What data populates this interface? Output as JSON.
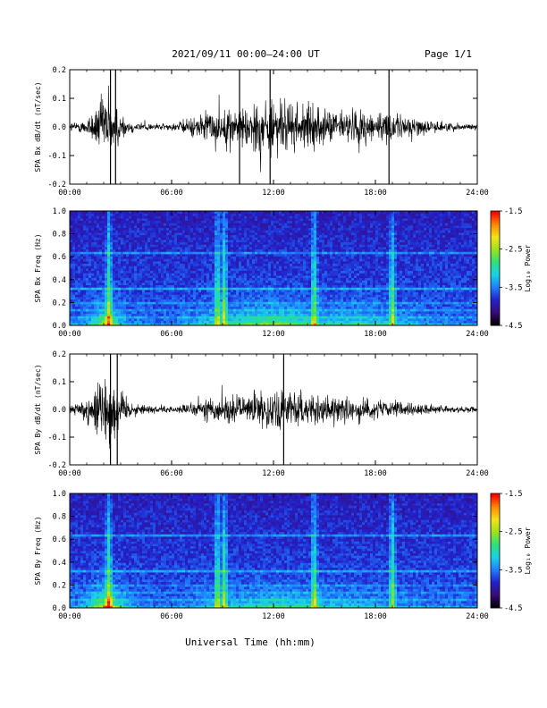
{
  "header": {
    "title": "2021/09/11  00:00–24:00 UT",
    "page": "Page 1/1"
  },
  "footer": {
    "xlabel": "Universal Time (hh:mm)"
  },
  "colors": {
    "trace": "#000000",
    "colormap": [
      "#000000",
      "#3a0b7a",
      "#2222cc",
      "#1f7fff",
      "#19d3e6",
      "#2ee07a",
      "#9be21c",
      "#f2e41a",
      "#ff8a00",
      "#ff0000"
    ]
  },
  "chart_data": [
    {
      "id": "bx-waveform",
      "type": "line",
      "ylabel": "SPA Bx dB/dt (nT/sec)",
      "xlim": [
        "00:00",
        "24:00"
      ],
      "ylim": [
        -0.2,
        0.2
      ],
      "xticks": [
        "00:00",
        "06:00",
        "12:00",
        "18:00",
        "24:00"
      ],
      "yticks": [
        "-0.2",
        "-0.1",
        "0.0",
        "0.1",
        "0.2"
      ],
      "envelope": {
        "hours": [
          0,
          0.5,
          1.0,
          1.5,
          2.0,
          2.3,
          2.6,
          3.0,
          3.5,
          4.0,
          5.0,
          6.0,
          7.0,
          8.0,
          9.0,
          10.0,
          11.0,
          12.0,
          13.0,
          14.0,
          14.5,
          15.0,
          16.0,
          17.0,
          18.0,
          19.0,
          20.0,
          21.0,
          22.0,
          23.0,
          24.0
        ],
        "amplitude": [
          0.03,
          0.03,
          0.05,
          0.12,
          0.2,
          0.22,
          0.15,
          0.08,
          0.04,
          0.03,
          0.02,
          0.02,
          0.05,
          0.09,
          0.1,
          0.12,
          0.16,
          0.17,
          0.15,
          0.13,
          0.12,
          0.1,
          0.1,
          0.11,
          0.1,
          0.08,
          0.07,
          0.04,
          0.03,
          0.02,
          0.02
        ]
      },
      "spikes_hours": [
        2.4,
        2.7,
        10.0,
        11.8,
        18.8
      ]
    },
    {
      "id": "bx-spectrogram",
      "type": "heatmap",
      "ylabel": "SPA Bx Freq (Hz)",
      "xlim": [
        "00:00",
        "24:00"
      ],
      "ylim": [
        0.0,
        1.0
      ],
      "xticks": [
        "00:00",
        "06:00",
        "12:00",
        "18:00",
        "24:00"
      ],
      "yticks": [
        "0.0",
        "0.2",
        "0.4",
        "0.6",
        "0.8",
        "1.0"
      ],
      "colorbar": {
        "label": "Log₁₀ Power",
        "ticks": [
          "-1.5",
          "-2.5",
          "-3.5",
          "-4.5"
        ],
        "range": [
          -4.5,
          -1.5
        ]
      }
    },
    {
      "id": "by-waveform",
      "type": "line",
      "ylabel": "SPA By dB/dt (nT/sec)",
      "xlim": [
        "00:00",
        "24:00"
      ],
      "ylim": [
        -0.2,
        0.2
      ],
      "xticks": [
        "00:00",
        "06:00",
        "12:00",
        "18:00",
        "24:00"
      ],
      "yticks": [
        "-0.2",
        "-0.1",
        "0.0",
        "0.1",
        "0.2"
      ],
      "envelope": {
        "hours": [
          0,
          0.5,
          1.0,
          1.5,
          2.0,
          2.3,
          2.6,
          3.0,
          3.5,
          4.0,
          5.0,
          6.0,
          7.0,
          8.0,
          9.0,
          10.0,
          11.0,
          12.0,
          13.0,
          14.0,
          14.5,
          15.0,
          16.0,
          17.0,
          18.0,
          19.0,
          20.0,
          21.0,
          22.0,
          23.0,
          24.0
        ],
        "amplitude": [
          0.03,
          0.04,
          0.08,
          0.15,
          0.22,
          0.24,
          0.2,
          0.12,
          0.06,
          0.03,
          0.02,
          0.02,
          0.03,
          0.07,
          0.08,
          0.08,
          0.1,
          0.12,
          0.11,
          0.1,
          0.12,
          0.08,
          0.08,
          0.07,
          0.06,
          0.05,
          0.04,
          0.03,
          0.02,
          0.02,
          0.02
        ]
      },
      "spikes_hours": [
        2.4,
        2.8,
        12.6
      ]
    },
    {
      "id": "by-spectrogram",
      "type": "heatmap",
      "ylabel": "SPA By Freq (Hz)",
      "xlim": [
        "00:00",
        "24:00"
      ],
      "ylim": [
        0.0,
        1.0
      ],
      "xticks": [
        "00:00",
        "06:00",
        "12:00",
        "18:00",
        "24:00"
      ],
      "yticks": [
        "0.0",
        "0.2",
        "0.4",
        "0.6",
        "0.8",
        "1.0"
      ],
      "colorbar": {
        "label": "Log₁₀ Power",
        "ticks": [
          "-1.5",
          "-2.5",
          "-3.5",
          "-4.5"
        ],
        "range": [
          -4.5,
          -1.5
        ]
      }
    }
  ]
}
